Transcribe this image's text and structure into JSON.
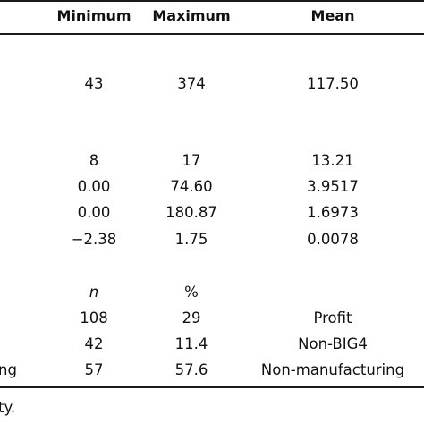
{
  "header": {
    "minimum": "Minimum",
    "maximum": "Maximum",
    "mean": "Mean"
  },
  "rows": [
    {
      "min": "43",
      "max": "374",
      "mean": "117.50"
    },
    {
      "min": "8",
      "max": "17",
      "mean": "13.21"
    },
    {
      "min": "0.00",
      "max": "74.60",
      "mean": "3.9517"
    },
    {
      "min": "0.00",
      "max": "180.87",
      "mean": "1.6973"
    },
    {
      "min": "−2.38",
      "max": "1.75",
      "mean": "0.0078"
    }
  ],
  "categorical_header": {
    "n": "n",
    "pct": "%"
  },
  "categorical_rows": [
    {
      "label": "",
      "n": "108",
      "pct": "29",
      "value": "Profit"
    },
    {
      "label": "",
      "n": "42",
      "pct": "11.4",
      "value": "Non-BIG4"
    },
    {
      "label": "ng",
      "n": "57",
      "pct": "57.6",
      "value": "Non-manufacturing"
    }
  ],
  "footnote": "ty."
}
